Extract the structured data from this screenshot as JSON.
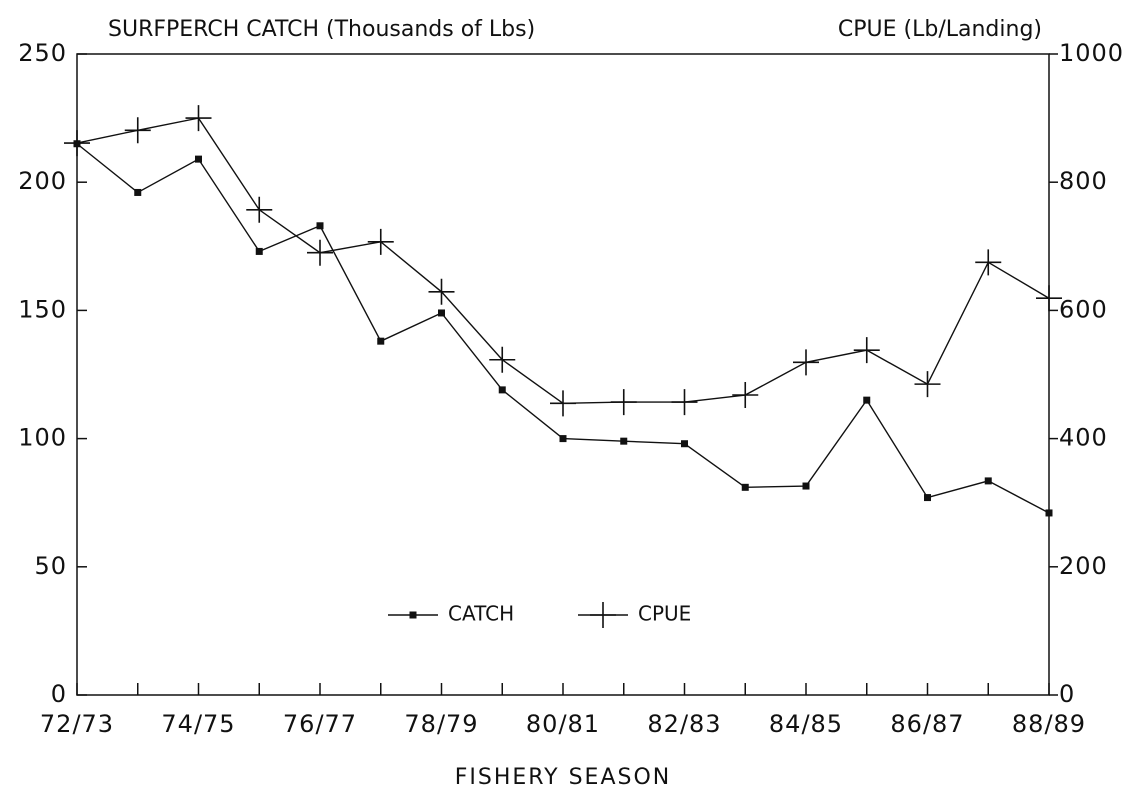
{
  "chart_data": {
    "type": "line",
    "title": "SURFPERCH CATCH (Thousands of Lbs)",
    "y2_title": "CPUE (Lb/Landing)",
    "x_title": "FISHERY SEASON",
    "categories": [
      "72/73",
      null,
      "74/75",
      null,
      "76/77",
      null,
      "78/79",
      null,
      "80/81",
      null,
      "82/83",
      null,
      "84/85",
      null,
      "86/87",
      null,
      "88/89"
    ],
    "series": [
      {
        "name": "CATCH",
        "color": "#111111",
        "marker": "square",
        "values": [
          215,
          196,
          209,
          173,
          183,
          138,
          149,
          119,
          100,
          99,
          98,
          81,
          81.5,
          115,
          77,
          83.5,
          71
        ]
      },
      {
        "name": "CPUE",
        "color": "#111111",
        "marker": "plus",
        "axis": "y2",
        "values": [
          861,
          881,
          900,
          757,
          690,
          707,
          629,
          523,
          455,
          457,
          457,
          468,
          519,
          538,
          485,
          675,
          619
        ]
      }
    ],
    "ylim": [
      0,
      250
    ],
    "yticks": [
      0,
      50,
      100,
      150,
      200,
      250
    ],
    "y2lim": [
      0,
      1000
    ],
    "y2ticks": [
      0,
      200,
      400,
      600,
      800,
      1000
    ],
    "grid": false,
    "legend": "bottom-center"
  }
}
